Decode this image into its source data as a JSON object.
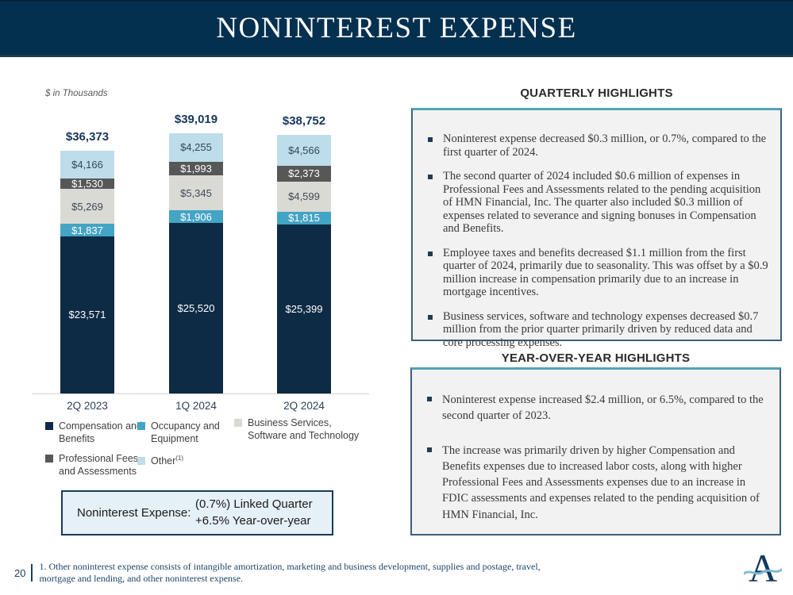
{
  "slide": {
    "title": "NONINTEREST EXPENSE",
    "page_number": "20",
    "footnote": "1. Other noninterest expense consists of intangible amortization, marketing and business development, supplies and postage, travel, mortgage and lending, and other noninterest expense."
  },
  "chart_data": {
    "type": "bar",
    "stacked": true,
    "units_note": "$ in Thousands",
    "categories": [
      "2Q 2023",
      "1Q 2024",
      "2Q 2024"
    ],
    "series": [
      {
        "name": "Compensation and Benefits",
        "color": "#0d2b45",
        "text_color": "#ffffff",
        "values": [
          23571,
          25520,
          25399
        ],
        "value_labels": [
          "$23,571",
          "$25,520",
          "$25,399"
        ]
      },
      {
        "name": "Occupancy and Equipment",
        "color": "#44a4c4",
        "text_color": "#ffffff",
        "values": [
          1837,
          1906,
          1815
        ],
        "value_labels": [
          "$1,837",
          "$1,906",
          "$1,815"
        ]
      },
      {
        "name": "Business Services, Software and Technology",
        "color": "#dadad4",
        "text_color": "#3c4a5a",
        "values": [
          5269,
          5345,
          4599
        ],
        "value_labels": [
          "$5,269",
          "$5,345",
          "$4,599"
        ]
      },
      {
        "name": "Professional Fees and Assessments",
        "color": "#575757",
        "text_color": "#ffffff",
        "values": [
          1530,
          1993,
          2373
        ],
        "value_labels": [
          "$1,530",
          "$1,993",
          "$2,373"
        ]
      },
      {
        "name": "Other",
        "footnote_ref": "(1)",
        "color": "#bcdde9",
        "text_color": "#33485e",
        "values": [
          4166,
          4255,
          4566
        ],
        "value_labels": [
          "$4,166",
          "$4,255",
          "$4,566"
        ]
      }
    ],
    "totals": [
      36373,
      39019,
      38752
    ],
    "total_labels": [
      "$36,373",
      "$39,019",
      "$38,752"
    ],
    "ylim": [
      0,
      39019
    ],
    "legend_position": "bottom",
    "grid": false
  },
  "summary_box": {
    "label": "Noninterest Expense:",
    "line1": "(0.7%) Linked Quarter",
    "line2": "+6.5% Year-over-year"
  },
  "quarterly": {
    "title": "QUARTERLY HIGHLIGHTS",
    "bullets": [
      "Noninterest expense decreased $0.3 million, or 0.7%, compared to the first quarter of 2024.",
      "The second quarter of 2024 included $0.6 million of expenses in Professional Fees and Assessments related to the pending acquisition of HMN Financial, Inc. The quarter also included $0.3 million of expenses related to severance and signing bonuses in Compensation and Benefits.",
      "Employee taxes and benefits decreased $1.1 million from the first quarter of 2024, primarily due to seasonality. This was offset by a $0.9 million increase in compensation primarily due to an increase in mortgage incentives.",
      "Business services, software and technology expenses decreased $0.7 million from the prior quarter primarily driven by reduced data and core processing expenses."
    ]
  },
  "yoy": {
    "title": "YEAR-OVER-YEAR HIGHLIGHTS",
    "bullets": [
      "Noninterest expense increased $2.4 million, or 6.5%, compared to the second quarter of 2023.",
      "The increase was primarily driven by higher Compensation and Benefits expenses due to increased labor costs, along with higher Professional Fees and Assessments expenses due to an increase in FDIC assessments and expenses related to the pending acquisition of HMN Financial, Inc."
    ]
  }
}
